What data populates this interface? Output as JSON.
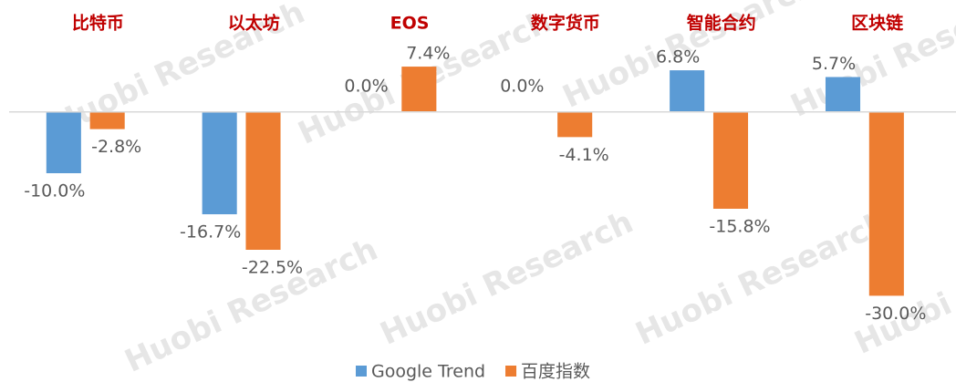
{
  "chart_data": {
    "type": "bar",
    "categories": [
      "比特币",
      "以太坊",
      "EOS",
      "数字货币",
      "智能合约",
      "区块链"
    ],
    "series": [
      {
        "name": "Google Trend",
        "color": "#5b9bd5",
        "values": [
          -10.0,
          -16.7,
          0.0,
          0.0,
          6.8,
          5.7
        ],
        "value_labels": [
          "-10.0%",
          "-16.7%",
          "0.0%",
          "0.0%",
          "6.8%",
          "5.7%"
        ]
      },
      {
        "name": "百度指数",
        "color": "#ed7d31",
        "values": [
          -2.8,
          -22.5,
          7.4,
          -4.1,
          -15.8,
          -30.0
        ],
        "value_labels": [
          "-2.8%",
          "-22.5%",
          "7.4%",
          "-4.1%",
          "-15.8%",
          "-30.0%"
        ]
      }
    ],
    "ylim": [
      -35,
      15
    ],
    "legend": "bottom",
    "watermark": "Huobi Research"
  }
}
